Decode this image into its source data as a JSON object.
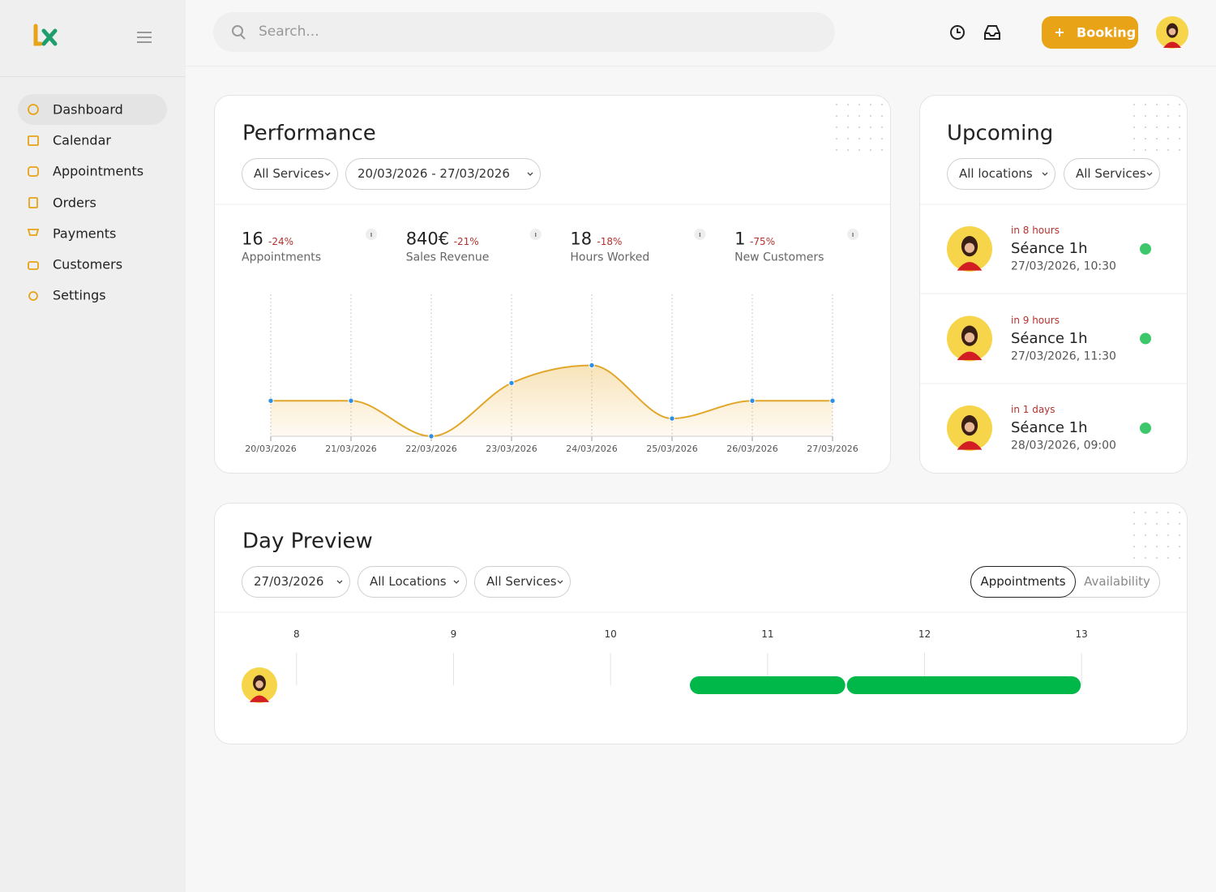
{
  "sidebar": {
    "menu": [
      "Dashboard",
      "Calendar",
      "Appointments",
      "Orders",
      "Payments",
      "Customers",
      "Settings"
    ]
  },
  "header": {
    "search_placeholder": "Search...",
    "booking_button": "Booking"
  },
  "performance": {
    "title": "Performance",
    "filters": [
      "All Services",
      "20/03/2026 - 27/03/2026"
    ],
    "stats": [
      {
        "value": "16",
        "change": "-24%",
        "label": "Appointments"
      },
      {
        "value": "840€",
        "change": "-21%",
        "label": "Sales Revenue"
      },
      {
        "value": "18",
        "change": "-18%",
        "label": "Hours Worked"
      },
      {
        "value": "1",
        "change": "-75%",
        "label": "New Customers"
      }
    ]
  },
  "upcoming": {
    "title": "Upcoming",
    "filters": [
      "All locations",
      "All Services"
    ],
    "items": [
      {
        "when": "in 8 hours",
        "name": "Séance 1h",
        "date": "27/03/2026, 10:30"
      },
      {
        "when": "in 9 hours",
        "name": "Séance 1h",
        "date": "27/03/2026, 11:30"
      },
      {
        "when": "in 1 days",
        "name": "Séance 1h",
        "date": "28/03/2026, 09:00"
      }
    ]
  },
  "day_preview": {
    "title": "Day Preview",
    "filters": [
      "27/03/2026",
      "All Locations",
      "All Services"
    ],
    "tabs": [
      "Appointments",
      "Availability"
    ]
  },
  "chart_data": [
    {
      "type": "line",
      "categories": [
        "20/03/2026",
        "21/03/2026",
        "22/03/2026",
        "23/03/2026",
        "24/03/2026",
        "25/03/2026",
        "26/03/2026",
        "27/03/2026"
      ],
      "values": [
        2,
        2,
        0,
        3,
        4,
        1,
        2,
        2
      ],
      "color": "#e2a72a",
      "marker_color": "#2f8fe3",
      "ylim": [
        0,
        8
      ],
      "grid": true
    },
    {
      "type": "timeline",
      "xlim": [
        7.5,
        13.5
      ],
      "xticks": [
        8,
        9,
        10,
        11,
        12,
        13
      ],
      "bars": [
        {
          "start": 10.5,
          "end": 11.5
        },
        {
          "start": 11.5,
          "end": 13
        }
      ],
      "color": "#00b84a"
    }
  ]
}
